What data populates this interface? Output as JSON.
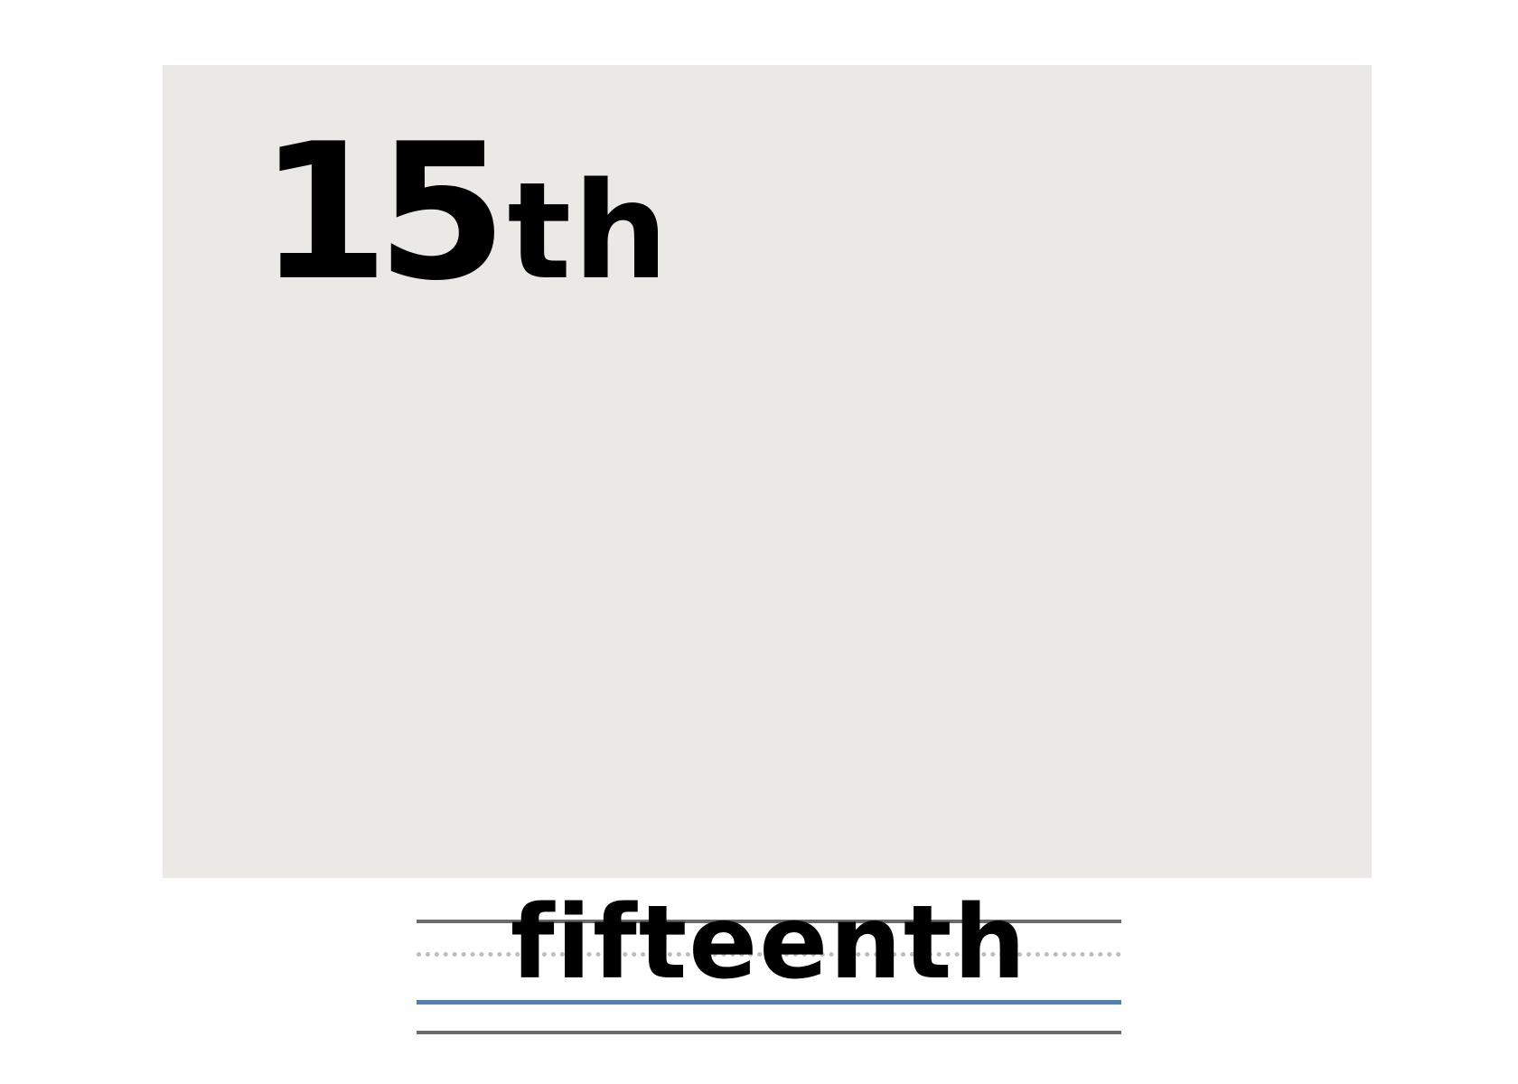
{
  "card": {
    "number": "15",
    "suffix": "th"
  },
  "writing": {
    "word": "fifteenth"
  },
  "colors": {
    "card_background": "#ebe9e6",
    "text": "#000000",
    "guide_line": "#6b6b6b",
    "dotted_midline": "#bdbdbd",
    "baseline": "#4f82b4"
  }
}
